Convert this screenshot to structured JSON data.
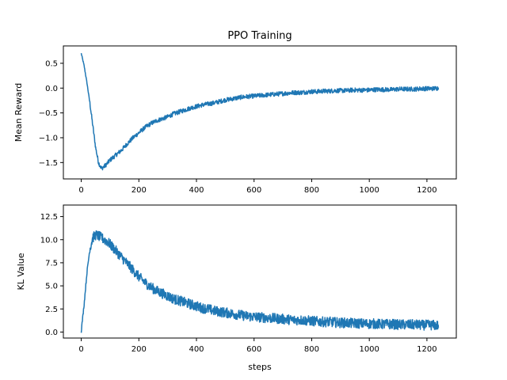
{
  "chart_data": [
    {
      "type": "line",
      "title": "PPO Training",
      "xlabel": "",
      "ylabel": "Mean Reward",
      "xlim": [
        -62,
        1302
      ],
      "ylim": [
        -1.83,
        0.85
      ],
      "xticks": [
        0,
        200,
        400,
        600,
        800,
        1000,
        1200
      ],
      "yticks": [
        -1.5,
        -1.0,
        -0.5,
        0.0,
        0.5
      ],
      "xtick_labels": [
        "0",
        "200",
        "400",
        "600",
        "800",
        "1000",
        "1200"
      ],
      "ytick_labels": [
        "−1.5",
        "−1.0",
        "−0.5",
        "0.0",
        "0.5"
      ],
      "grid": false,
      "color": "#1f77b4",
      "series": [
        {
          "x": [
            0,
            10,
            20,
            30,
            40,
            50,
            60,
            70,
            80,
            90,
            100,
            120,
            140,
            160,
            180,
            200,
            220,
            240,
            260,
            280,
            300,
            320,
            340,
            360,
            380,
            400,
            420,
            440,
            460,
            480,
            500,
            520,
            540,
            560,
            580,
            600,
            620,
            640,
            660,
            680,
            700,
            720,
            740,
            760,
            780,
            800,
            820,
            840,
            860,
            880,
            900,
            920,
            940,
            960,
            980,
            1000,
            1020,
            1040,
            1060,
            1080,
            1100,
            1120,
            1140,
            1160,
            1180,
            1200,
            1220,
            1240
          ],
          "y": [
            0.7,
            0.45,
            0.1,
            -0.3,
            -0.75,
            -1.2,
            -1.5,
            -1.62,
            -1.58,
            -1.52,
            -1.45,
            -1.35,
            -1.25,
            -1.12,
            -1.0,
            -0.9,
            -0.8,
            -0.72,
            -0.66,
            -0.62,
            -0.58,
            -0.52,
            -0.48,
            -0.44,
            -0.4,
            -0.37,
            -0.34,
            -0.32,
            -0.3,
            -0.27,
            -0.24,
            -0.22,
            -0.2,
            -0.18,
            -0.17,
            -0.16,
            -0.15,
            -0.14,
            -0.13,
            -0.12,
            -0.11,
            -0.1,
            -0.09,
            -0.09,
            -0.08,
            -0.07,
            -0.07,
            -0.06,
            -0.06,
            -0.05,
            -0.05,
            -0.05,
            -0.04,
            -0.04,
            -0.04,
            -0.04,
            -0.03,
            -0.03,
            -0.03,
            -0.03,
            -0.02,
            -0.02,
            -0.02,
            -0.02,
            -0.01,
            -0.01,
            -0.01,
            0.0
          ],
          "noise": 0.045
        }
      ]
    },
    {
      "type": "line",
      "title": "",
      "xlabel": "steps",
      "ylabel": "KL Value",
      "xlim": [
        -62,
        1302
      ],
      "ylim": [
        -0.65,
        13.75
      ],
      "xticks": [
        0,
        200,
        400,
        600,
        800,
        1000,
        1200
      ],
      "yticks": [
        0.0,
        2.5,
        5.0,
        7.5,
        10.0,
        12.5
      ],
      "xtick_labels": [
        "0",
        "200",
        "400",
        "600",
        "800",
        "1000",
        "1200"
      ],
      "ytick_labels": [
        "0.0",
        "2.5",
        "5.0",
        "7.5",
        "10.0",
        "12.5"
      ],
      "grid": false,
      "color": "#1f77b4",
      "series": [
        {
          "x": [
            0,
            10,
            20,
            30,
            40,
            50,
            60,
            70,
            80,
            90,
            100,
            120,
            140,
            160,
            180,
            200,
            220,
            240,
            260,
            280,
            300,
            320,
            340,
            360,
            380,
            400,
            420,
            440,
            460,
            480,
            500,
            520,
            540,
            560,
            580,
            600,
            620,
            640,
            660,
            680,
            700,
            720,
            740,
            760,
            780,
            800,
            820,
            840,
            860,
            880,
            900,
            920,
            940,
            960,
            980,
            1000,
            1020,
            1040,
            1060,
            1080,
            1100,
            1120,
            1140,
            1160,
            1180,
            1200,
            1220,
            1240
          ],
          "y": [
            0.1,
            3.0,
            6.5,
            9.0,
            10.2,
            10.5,
            10.4,
            10.2,
            10.0,
            9.8,
            9.5,
            8.8,
            8.1,
            7.4,
            6.7,
            6.0,
            5.4,
            4.9,
            4.5,
            4.2,
            3.9,
            3.6,
            3.4,
            3.2,
            3.0,
            2.8,
            2.6,
            2.5,
            2.3,
            2.2,
            2.1,
            2.0,
            1.9,
            1.8,
            1.7,
            1.65,
            1.6,
            1.55,
            1.5,
            1.45,
            1.4,
            1.35,
            1.3,
            1.3,
            1.25,
            1.2,
            1.15,
            1.1,
            1.1,
            1.05,
            1.0,
            1.0,
            0.95,
            0.95,
            0.9,
            0.9,
            0.9,
            0.85,
            0.85,
            0.85,
            0.8,
            0.8,
            0.8,
            0.8,
            0.75,
            0.75,
            0.75,
            0.7
          ],
          "noise": 0.55
        }
      ]
    }
  ]
}
